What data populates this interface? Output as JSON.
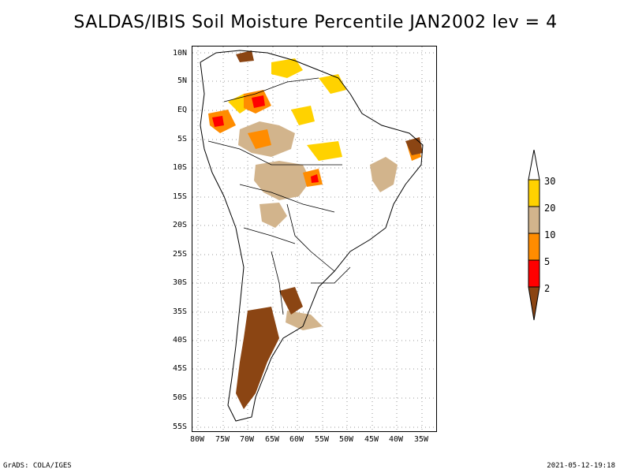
{
  "title": "SALDAS/IBIS Soil Moisture Percentile JAN2002 lev = 4",
  "lat_labels": [
    "10N",
    "5N",
    "EQ",
    "5S",
    "10S",
    "15S",
    "20S",
    "25S",
    "30S",
    "35S",
    "40S",
    "45S",
    "50S",
    "55S"
  ],
  "lon_labels": [
    "80W",
    "75W",
    "70W",
    "65W",
    "60W",
    "55W",
    "50W",
    "45W",
    "40W",
    "35W"
  ],
  "colorbar": {
    "labels": [
      "30",
      "20",
      "10",
      "5",
      "2"
    ],
    "colors": {
      "top_open": "#ffffff",
      "c20_30": "#ffd200",
      "c10_20": "#d2b48c",
      "c5_10": "#ff8c00",
      "c2_5": "#ff0000",
      "below2": "#8b4513"
    }
  },
  "footer": {
    "left": "GrADS: COLA/IGES",
    "right": "2021-05-12-19:18"
  }
}
